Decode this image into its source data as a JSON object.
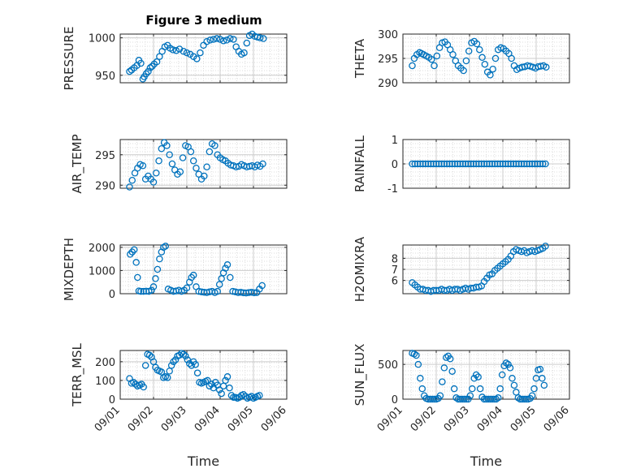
{
  "title": "Figure 3 medium",
  "colors": {
    "marker": "#0072BD",
    "axis": "#262626",
    "grid": "#cccccc",
    "minor_grid": "#dedede"
  },
  "x_axis": {
    "label": "Time",
    "ticks": [
      "09/01",
      "09/02",
      "09/03",
      "09/04",
      "09/05",
      "09/06"
    ],
    "range_days": [
      1,
      6
    ]
  },
  "chart_data": [
    {
      "type": "scatter",
      "ylabel": "PRESSURE",
      "ylim": [
        940,
        1005
      ],
      "yticks": [
        950,
        1000
      ],
      "grid": "major+minor",
      "x": [
        1.28,
        1.34,
        1.42,
        1.5,
        1.56,
        1.62,
        1.68,
        1.72,
        1.78,
        1.84,
        1.9,
        1.96,
        2.02,
        2.1,
        2.18,
        2.26,
        2.34,
        2.42,
        2.5,
        2.58,
        2.68,
        2.78,
        2.9,
        3.0,
        3.1,
        3.2,
        3.3,
        3.4,
        3.5,
        3.6,
        3.7,
        3.8,
        3.9,
        4.0,
        4.1,
        4.2,
        4.3,
        4.4,
        4.48,
        4.56,
        4.64,
        4.72,
        4.8,
        4.88,
        4.96,
        5.04,
        5.12,
        5.2,
        5.3
      ],
      "y": [
        955,
        957,
        960,
        963,
        970,
        966,
        945,
        948,
        952,
        955,
        960,
        962,
        965,
        968,
        975,
        982,
        988,
        990,
        986,
        984,
        983,
        985,
        982,
        980,
        978,
        975,
        972,
        980,
        990,
        995,
        997,
        998,
        999,
        998,
        996,
        997,
        999,
        998,
        988,
        982,
        978,
        980,
        993,
        1003,
        1005,
        1002,
        1001,
        1000,
        999
      ]
    },
    {
      "type": "scatter",
      "ylabel": "THETA",
      "ylim": [
        290,
        300
      ],
      "yticks": [
        290,
        295,
        300
      ],
      "grid": "major+minor",
      "x": [
        1.28,
        1.34,
        1.42,
        1.5,
        1.56,
        1.62,
        1.7,
        1.78,
        1.86,
        1.94,
        2.02,
        2.1,
        2.18,
        2.26,
        2.34,
        2.42,
        2.5,
        2.58,
        2.66,
        2.74,
        2.82,
        2.9,
        2.98,
        3.06,
        3.14,
        3.22,
        3.3,
        3.38,
        3.46,
        3.54,
        3.62,
        3.7,
        3.78,
        3.86,
        3.94,
        4.02,
        4.1,
        4.18,
        4.26,
        4.34,
        4.42,
        4.5,
        4.58,
        4.66,
        4.74,
        4.82,
        4.9,
        4.98,
        5.06,
        5.14,
        5.22,
        5.3
      ],
      "y": [
        293.5,
        295.0,
        295.8,
        296.2,
        296.0,
        295.8,
        295.5,
        295.2,
        294.8,
        293.5,
        295.5,
        297.2,
        298.2,
        298.4,
        297.8,
        296.8,
        295.8,
        294.5,
        293.5,
        293.0,
        292.5,
        294.5,
        296.5,
        298.2,
        298.5,
        298.0,
        296.8,
        295.2,
        293.8,
        292.2,
        291.6,
        292.8,
        295.0,
        296.8,
        297.2,
        297.0,
        296.5,
        296.0,
        295.0,
        293.5,
        292.7,
        293.0,
        293.2,
        293.3,
        293.5,
        293.4,
        293.2,
        293.0,
        293.3,
        293.4,
        293.5,
        293.2
      ]
    },
    {
      "type": "scatter",
      "ylabel": "AIR_TEMP",
      "ylim": [
        289.5,
        297.5
      ],
      "yticks": [
        290,
        295
      ],
      "grid": "major+minor",
      "x": [
        1.28,
        1.36,
        1.44,
        1.52,
        1.6,
        1.68,
        1.76,
        1.84,
        1.92,
        2.0,
        2.08,
        2.16,
        2.24,
        2.32,
        2.4,
        2.48,
        2.56,
        2.64,
        2.72,
        2.8,
        2.88,
        2.96,
        3.04,
        3.12,
        3.2,
        3.28,
        3.36,
        3.44,
        3.52,
        3.6,
        3.68,
        3.76,
        3.84,
        3.92,
        4.0,
        4.08,
        4.16,
        4.24,
        4.32,
        4.4,
        4.48,
        4.56,
        4.64,
        4.72,
        4.8,
        4.88,
        4.96,
        5.04,
        5.12,
        5.2,
        5.28
      ],
      "y": [
        289.7,
        290.8,
        292.0,
        292.8,
        293.4,
        293.2,
        291.0,
        291.5,
        291.0,
        290.5,
        292.0,
        294.0,
        296.0,
        297.0,
        296.5,
        295.0,
        293.5,
        292.5,
        291.8,
        292.2,
        294.5,
        296.5,
        296.3,
        295.5,
        294.0,
        292.8,
        291.8,
        291.0,
        291.5,
        293.0,
        295.5,
        296.8,
        296.5,
        295.0,
        294.5,
        294.2,
        294.0,
        293.6,
        293.3,
        293.2,
        293.0,
        293.1,
        293.4,
        293.2,
        293.0,
        293.1,
        293.2,
        293.0,
        293.3,
        293.1,
        293.5
      ]
    },
    {
      "type": "scatter",
      "ylabel": "RAINFALL",
      "ylim": [
        -1,
        1
      ],
      "yticks": [
        -1,
        0,
        1
      ],
      "grid": "major+minor",
      "x": [
        1.28,
        1.36,
        1.44,
        1.52,
        1.6,
        1.68,
        1.76,
        1.84,
        1.92,
        2.0,
        2.08,
        2.16,
        2.24,
        2.32,
        2.4,
        2.48,
        2.56,
        2.64,
        2.72,
        2.8,
        2.88,
        2.96,
        3.04,
        3.12,
        3.2,
        3.28,
        3.36,
        3.44,
        3.52,
        3.6,
        3.68,
        3.76,
        3.84,
        3.92,
        4.0,
        4.08,
        4.16,
        4.24,
        4.32,
        4.4,
        4.48,
        4.56,
        4.64,
        4.72,
        4.8,
        4.88,
        4.96,
        5.04,
        5.12,
        5.2,
        5.28
      ],
      "y": [
        0,
        0,
        0,
        0,
        0,
        0,
        0,
        0,
        0,
        0,
        0,
        0,
        0,
        0,
        0,
        0,
        0,
        0,
        0,
        0,
        0,
        0,
        0,
        0,
        0,
        0,
        0,
        0,
        0,
        0,
        0,
        0,
        0,
        0,
        0,
        0,
        0,
        0,
        0,
        0,
        0,
        0,
        0,
        0,
        0,
        0,
        0,
        0,
        0,
        0,
        0
      ]
    },
    {
      "type": "scatter",
      "ylabel": "MIXDEPTH",
      "ylim": [
        0,
        2100
      ],
      "yticks": [
        0,
        1000,
        2000
      ],
      "grid": "major+minor",
      "x": [
        1.3,
        1.36,
        1.42,
        1.48,
        1.52,
        1.56,
        1.62,
        1.7,
        1.78,
        1.86,
        1.94,
        2.0,
        2.06,
        2.12,
        2.18,
        2.24,
        2.3,
        2.36,
        2.44,
        2.52,
        2.6,
        2.68,
        2.76,
        2.84,
        2.92,
        3.0,
        3.08,
        3.14,
        3.2,
        3.28,
        3.36,
        3.44,
        3.52,
        3.6,
        3.68,
        3.76,
        3.84,
        3.92,
        3.98,
        4.04,
        4.1,
        4.16,
        4.22,
        4.3,
        4.38,
        4.46,
        4.54,
        4.62,
        4.7,
        4.78,
        4.86,
        4.94,
        5.02,
        5.1,
        5.18,
        5.26
      ],
      "y": [
        1700,
        1800,
        1900,
        1350,
        700,
        120,
        100,
        100,
        110,
        100,
        150,
        300,
        650,
        1050,
        1500,
        1800,
        2000,
        2050,
        200,
        150,
        100,
        120,
        150,
        100,
        150,
        250,
        500,
        700,
        800,
        300,
        100,
        80,
        60,
        50,
        80,
        100,
        50,
        100,
        400,
        650,
        900,
        1100,
        1250,
        700,
        100,
        80,
        50,
        60,
        40,
        30,
        50,
        60,
        40,
        50,
        200,
        350
      ]
    },
    {
      "type": "scatter",
      "ylabel": "H2OMIXRA",
      "ylim": [
        4.8,
        9.2
      ],
      "yticks": [
        6,
        7,
        8
      ],
      "grid": "major+minor",
      "x": [
        1.28,
        1.36,
        1.44,
        1.52,
        1.6,
        1.68,
        1.76,
        1.84,
        1.92,
        2.0,
        2.08,
        2.16,
        2.24,
        2.32,
        2.4,
        2.48,
        2.56,
        2.64,
        2.72,
        2.8,
        2.88,
        2.96,
        3.04,
        3.12,
        3.2,
        3.28,
        3.36,
        3.44,
        3.52,
        3.6,
        3.68,
        3.76,
        3.84,
        3.92,
        4.0,
        4.08,
        4.16,
        4.24,
        4.32,
        4.4,
        4.48,
        4.56,
        4.64,
        4.72,
        4.8,
        4.88,
        4.96,
        5.04,
        5.12,
        5.2,
        5.28
      ],
      "y": [
        5.8,
        5.6,
        5.4,
        5.2,
        5.2,
        5.1,
        5.1,
        5.0,
        5.1,
        5.1,
        5.1,
        5.2,
        5.1,
        5.1,
        5.2,
        5.1,
        5.2,
        5.2,
        5.1,
        5.2,
        5.3,
        5.2,
        5.3,
        5.3,
        5.4,
        5.4,
        5.5,
        5.9,
        6.2,
        6.5,
        6.6,
        6.9,
        7.1,
        7.3,
        7.5,
        7.7,
        7.9,
        8.2,
        8.6,
        8.8,
        8.7,
        8.6,
        8.7,
        8.5,
        8.6,
        8.7,
        8.6,
        8.7,
        8.8,
        8.9,
        9.1
      ]
    },
    {
      "type": "scatter",
      "ylabel": "TERR_MSL",
      "ylim": [
        0,
        260
      ],
      "yticks": [
        0,
        100,
        200
      ],
      "grid": "major+minor",
      "x": [
        1.28,
        1.34,
        1.4,
        1.46,
        1.52,
        1.58,
        1.64,
        1.7,
        1.76,
        1.82,
        1.88,
        1.94,
        2.0,
        2.06,
        2.12,
        2.18,
        2.24,
        2.3,
        2.36,
        2.42,
        2.48,
        2.54,
        2.6,
        2.66,
        2.72,
        2.78,
        2.84,
        2.9,
        2.96,
        3.02,
        3.08,
        3.14,
        3.2,
        3.26,
        3.32,
        3.38,
        3.44,
        3.5,
        3.56,
        3.62,
        3.68,
        3.74,
        3.8,
        3.86,
        3.92,
        3.98,
        4.04,
        4.1,
        4.16,
        4.22,
        4.28,
        4.34,
        4.4,
        4.46,
        4.52,
        4.58,
        4.64,
        4.7,
        4.76,
        4.82,
        4.88,
        4.94,
        5.0,
        5.06,
        5.12,
        5.18
      ],
      "y": [
        110,
        85,
        90,
        80,
        70,
        75,
        80,
        65,
        180,
        240,
        235,
        225,
        200,
        170,
        155,
        150,
        145,
        115,
        120,
        115,
        150,
        180,
        200,
        210,
        230,
        235,
        245,
        240,
        230,
        210,
        190,
        180,
        200,
        185,
        140,
        90,
        85,
        90,
        95,
        100,
        70,
        80,
        60,
        90,
        75,
        50,
        30,
        70,
        100,
        120,
        60,
        20,
        10,
        10,
        5,
        10,
        20,
        25,
        15,
        5,
        10,
        15,
        5,
        10,
        15,
        20
      ]
    },
    {
      "type": "scatter",
      "ylabel": "SUN_FLUX",
      "ylim": [
        0,
        700
      ],
      "yticks": [
        0,
        500
      ],
      "grid": "major+minor",
      "x": [
        1.28,
        1.34,
        1.4,
        1.46,
        1.52,
        1.58,
        1.64,
        1.7,
        1.76,
        1.82,
        1.88,
        1.94,
        2.0,
        2.06,
        2.12,
        2.18,
        2.24,
        2.3,
        2.36,
        2.42,
        2.48,
        2.54,
        2.6,
        2.66,
        2.72,
        2.78,
        2.84,
        2.9,
        2.96,
        3.02,
        3.08,
        3.14,
        3.2,
        3.26,
        3.32,
        3.38,
        3.44,
        3.5,
        3.56,
        3.62,
        3.68,
        3.74,
        3.8,
        3.86,
        3.92,
        3.98,
        4.04,
        4.1,
        4.16,
        4.22,
        4.28,
        4.34,
        4.4,
        4.46,
        4.52,
        4.58,
        4.64,
        4.7,
        4.76,
        4.82,
        4.88,
        4.94,
        5.0,
        5.06,
        5.12,
        5.18,
        5.24
      ],
      "y": [
        660,
        650,
        630,
        500,
        300,
        150,
        50,
        10,
        0,
        0,
        0,
        0,
        0,
        10,
        50,
        250,
        450,
        600,
        620,
        580,
        400,
        150,
        20,
        0,
        0,
        0,
        0,
        0,
        0,
        50,
        150,
        300,
        350,
        320,
        150,
        30,
        0,
        0,
        0,
        0,
        0,
        0,
        0,
        20,
        150,
        350,
        480,
        520,
        500,
        450,
        300,
        200,
        100,
        20,
        0,
        0,
        0,
        0,
        0,
        10,
        50,
        150,
        300,
        420,
        430,
        300,
        200
      ]
    }
  ]
}
